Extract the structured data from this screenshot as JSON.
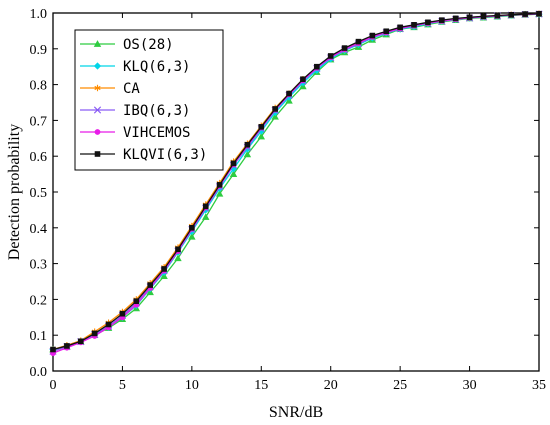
{
  "chart_data": {
    "type": "line",
    "title": "",
    "xlabel": "SNR/dB",
    "ylabel": "Detection probability",
    "xlim": [
      0,
      35
    ],
    "ylim": [
      0,
      1.0
    ],
    "xticks": [
      "0",
      "5",
      "10",
      "15",
      "20",
      "25",
      "30",
      "35"
    ],
    "yticks": [
      "0.0",
      "0.1",
      "0.2",
      "0.3",
      "0.4",
      "0.5",
      "0.6",
      "0.7",
      "0.8",
      "0.9",
      "1.0"
    ],
    "grid": false,
    "legend_position": "top-left",
    "x": [
      0,
      1,
      2,
      3,
      4,
      5,
      6,
      7,
      8,
      9,
      10,
      11,
      12,
      13,
      14,
      15,
      16,
      17,
      18,
      19,
      20,
      21,
      22,
      23,
      24,
      25,
      26,
      27,
      28,
      29,
      30,
      31,
      32,
      33,
      34,
      35
    ],
    "series": [
      {
        "name": "OS(28)",
        "color": "#2ecc40",
        "marker": "triangle",
        "values": [
          0.06,
          0.068,
          0.082,
          0.1,
          0.12,
          0.145,
          0.175,
          0.22,
          0.265,
          0.315,
          0.375,
          0.43,
          0.495,
          0.55,
          0.605,
          0.655,
          0.71,
          0.755,
          0.795,
          0.835,
          0.87,
          0.89,
          0.905,
          0.925,
          0.94,
          0.955,
          0.96,
          0.968,
          0.975,
          0.98,
          0.985,
          0.987,
          0.99,
          0.993,
          0.995,
          0.997
        ]
      },
      {
        "name": "KLQ(6,3)",
        "color": "#00d5e8",
        "marker": "diamond",
        "values": [
          0.06,
          0.07,
          0.083,
          0.101,
          0.122,
          0.15,
          0.183,
          0.23,
          0.276,
          0.332,
          0.39,
          0.45,
          0.51,
          0.565,
          0.62,
          0.67,
          0.722,
          0.765,
          0.805,
          0.84,
          0.872,
          0.895,
          0.912,
          0.93,
          0.944,
          0.955,
          0.962,
          0.97,
          0.977,
          0.982,
          0.986,
          0.989,
          0.991,
          0.994,
          0.996,
          0.997
        ]
      },
      {
        "name": "CA",
        "color": "#ff8c00",
        "marker": "star",
        "values": [
          0.06,
          0.072,
          0.085,
          0.11,
          0.135,
          0.165,
          0.2,
          0.245,
          0.29,
          0.345,
          0.405,
          0.465,
          0.525,
          0.585,
          0.635,
          0.685,
          0.735,
          0.775,
          0.815,
          0.848,
          0.878,
          0.898,
          0.916,
          0.934,
          0.947,
          0.957,
          0.965,
          0.972,
          0.978,
          0.983,
          0.987,
          0.99,
          0.992,
          0.995,
          0.996,
          0.998
        ]
      },
      {
        "name": "IBQ(6,3)",
        "color": "#8a5cf5",
        "marker": "x",
        "values": [
          0.055,
          0.068,
          0.082,
          0.102,
          0.125,
          0.155,
          0.19,
          0.235,
          0.28,
          0.335,
          0.395,
          0.455,
          0.515,
          0.575,
          0.625,
          0.677,
          0.728,
          0.77,
          0.81,
          0.845,
          0.875,
          0.897,
          0.914,
          0.932,
          0.945,
          0.956,
          0.964,
          0.971,
          0.977,
          0.982,
          0.986,
          0.989,
          0.992,
          0.994,
          0.996,
          0.997
        ]
      },
      {
        "name": "VIHCEMOS",
        "color": "#e81ce8",
        "marker": "circle",
        "values": [
          0.05,
          0.065,
          0.08,
          0.098,
          0.122,
          0.15,
          0.185,
          0.232,
          0.28,
          0.335,
          0.397,
          0.457,
          0.517,
          0.577,
          0.63,
          0.68,
          0.73,
          0.773,
          0.812,
          0.847,
          0.877,
          0.899,
          0.916,
          0.934,
          0.946,
          0.957,
          0.965,
          0.972,
          0.978,
          0.983,
          0.987,
          0.99,
          0.992,
          0.995,
          0.996,
          0.998
        ]
      },
      {
        "name": "KLQVI(6,3)",
        "color": "#111111",
        "marker": "square",
        "values": [
          0.06,
          0.07,
          0.083,
          0.105,
          0.13,
          0.16,
          0.195,
          0.24,
          0.285,
          0.34,
          0.4,
          0.46,
          0.52,
          0.58,
          0.632,
          0.682,
          0.732,
          0.775,
          0.815,
          0.85,
          0.88,
          0.902,
          0.92,
          0.937,
          0.949,
          0.96,
          0.967,
          0.974,
          0.98,
          0.985,
          0.988,
          0.991,
          0.993,
          0.995,
          0.997,
          0.998
        ]
      }
    ]
  }
}
